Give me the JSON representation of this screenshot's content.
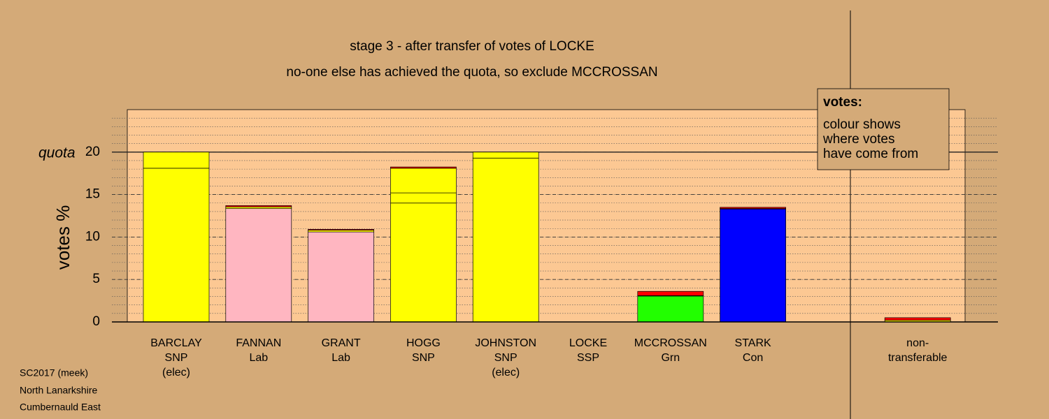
{
  "chart_data": {
    "type": "stacked_bar",
    "title": "stage 3 - after transfer of votes of LOCKE",
    "subtitle": "no-one else has achieved the quota, so exclude MCCROSSAN",
    "y_label": "votes %",
    "quota": 20,
    "quota_label": "quota",
    "categories": [
      [
        "BARCLAY",
        "SNP",
        "(elec)"
      ],
      [
        "FANNAN",
        "Lab"
      ],
      [
        "GRANT",
        "Lab"
      ],
      [
        "HOGG",
        "SNP"
      ],
      [
        "JOHNSTON",
        "SNP",
        "(elec)"
      ],
      [
        "LOCKE",
        "SSP"
      ],
      [
        "MCCROSSAN",
        "Grn"
      ],
      [
        "STARK",
        "Con"
      ],
      [
        "non-",
        "transferable"
      ]
    ],
    "series": [
      {
        "colors": [
          "#ffff00",
          "#ffb6c1",
          "#ffb6c1",
          "#ffff00",
          "#ffff00",
          "#ff0000",
          "#22ff00",
          "#0000ff",
          "#ffff00"
        ],
        "values": [
          18.1,
          13.35,
          10.6,
          14.0,
          19.3,
          0,
          3.05,
          13.3,
          0
        ]
      },
      {
        "color": "#ffff00",
        "values": [
          1.9,
          0.2,
          0.2,
          1.2,
          0.7,
          0,
          0.05,
          0.05,
          0.2
        ]
      },
      {
        "color": "#ffff00",
        "values": [
          0,
          0,
          0,
          2.9,
          0,
          0,
          0,
          0,
          0
        ]
      },
      {
        "color": "#ff0000",
        "values": [
          0,
          0.15,
          0.1,
          0.15,
          0,
          0,
          0.5,
          0.15,
          0.3
        ]
      }
    ],
    "ylim": [
      0,
      25
    ],
    "yticks": [
      0,
      5,
      10,
      15,
      20
    ],
    "grid": true,
    "legend": {
      "title": "votes:",
      "lines": [
        "colour shows",
        "where votes",
        "have come from"
      ]
    },
    "footer": [
      "SC2017 (meek)",
      "North Lanarkshire",
      "Cumbernauld East"
    ]
  }
}
